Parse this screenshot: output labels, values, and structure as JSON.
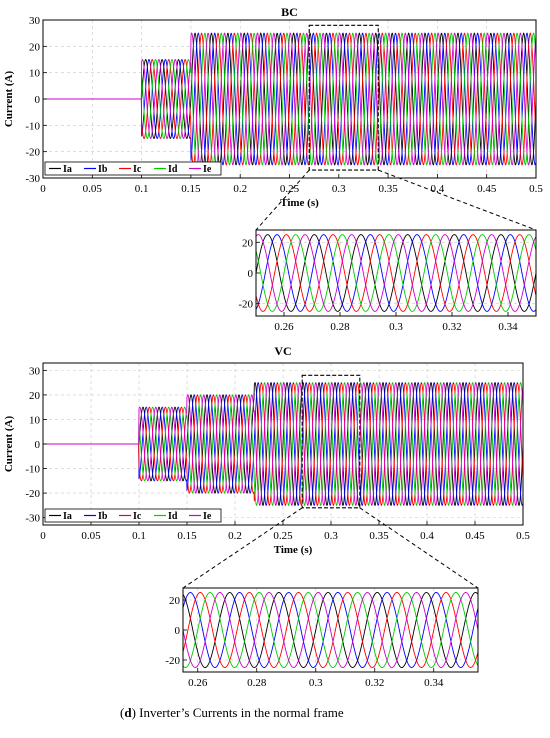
{
  "caption": {
    "label": "d",
    "text": "Inverter’s Currents in the normal frame"
  },
  "colors": {
    "Ia": "#000000",
    "Ib": "#0000ff",
    "Ic": "#ff0000",
    "Id": "#00cc00",
    "Ie": "#cc00cc"
  },
  "chart_data": [
    {
      "id": "bc-main",
      "type": "line",
      "title": "BC",
      "xlabel": "Time (s)",
      "ylabel": "Current (A)",
      "xlim": [
        0,
        0.5
      ],
      "ylim": [
        -30,
        30
      ],
      "xticks": [
        0,
        0.05,
        0.1,
        0.15,
        0.2,
        0.25,
        0.3,
        0.35,
        0.4,
        0.45,
        0.5
      ],
      "yticks": [
        -30,
        -20,
        -10,
        0,
        10,
        20,
        30
      ],
      "grid": true,
      "legend_position": "bottom-left",
      "series_names": [
        "Ia",
        "Ib",
        "Ic",
        "Id",
        "Ie"
      ],
      "segments": [
        {
          "t_start": 0,
          "t_end": 0.1,
          "amplitude": 0
        },
        {
          "t_start": 0.1,
          "t_end": 0.15,
          "amplitude": 15
        },
        {
          "t_start": 0.15,
          "t_end": 0.5,
          "amplitude": 25
        }
      ],
      "frequency_hz": 60,
      "zoom_box": {
        "x": [
          0.27,
          0.34
        ],
        "y": [
          -27,
          28
        ]
      }
    },
    {
      "id": "bc-zoom",
      "type": "line",
      "title": "",
      "xlabel": "",
      "ylabel": "",
      "xlim": [
        0.25,
        0.35
      ],
      "ylim": [
        -28,
        28
      ],
      "xticks": [
        0.26,
        0.28,
        0.3,
        0.32,
        0.34
      ],
      "yticks": [
        -20,
        0,
        20
      ],
      "grid": true,
      "series_names": [
        "Ia",
        "Ib",
        "Ic",
        "Id",
        "Ie"
      ],
      "amplitude": 25,
      "frequency_hz": 60
    },
    {
      "id": "vc-main",
      "type": "line",
      "title": "VC",
      "xlabel": "Time (s)",
      "ylabel": "Current (A)",
      "xlim": [
        0,
        0.5
      ],
      "ylim": [
        -33,
        33
      ],
      "xticks": [
        0,
        0.05,
        0.1,
        0.15,
        0.2,
        0.25,
        0.3,
        0.35,
        0.4,
        0.45,
        0.5
      ],
      "yticks": [
        -30,
        -20,
        -10,
        0,
        10,
        20,
        30
      ],
      "grid": true,
      "legend_position": "bottom-left",
      "series_names": [
        "Ia",
        "Ib",
        "Ic",
        "Id",
        "Ie"
      ],
      "segments": [
        {
          "t_start": 0,
          "t_end": 0.1,
          "amplitude": 0
        },
        {
          "t_start": 0.1,
          "t_end": 0.15,
          "amplitude": 15
        },
        {
          "t_start": 0.15,
          "t_end": 0.22,
          "amplitude": 20
        },
        {
          "t_start": 0.22,
          "t_end": 0.5,
          "amplitude": 25
        }
      ],
      "frequency_hz": 60,
      "zoom_box": {
        "x": [
          0.27,
          0.33
        ],
        "y": [
          -26,
          28
        ]
      }
    },
    {
      "id": "vc-zoom",
      "type": "line",
      "title": "",
      "xlabel": "",
      "ylabel": "",
      "xlim": [
        0.255,
        0.355
      ],
      "ylim": [
        -28,
        28
      ],
      "xticks": [
        0.26,
        0.28,
        0.3,
        0.32,
        0.34
      ],
      "yticks": [
        -20,
        0,
        20
      ],
      "grid": true,
      "series_names": [
        "Ia",
        "Ib",
        "Ic",
        "Id",
        "Ie"
      ],
      "amplitude": 25,
      "frequency_hz": 60
    }
  ]
}
